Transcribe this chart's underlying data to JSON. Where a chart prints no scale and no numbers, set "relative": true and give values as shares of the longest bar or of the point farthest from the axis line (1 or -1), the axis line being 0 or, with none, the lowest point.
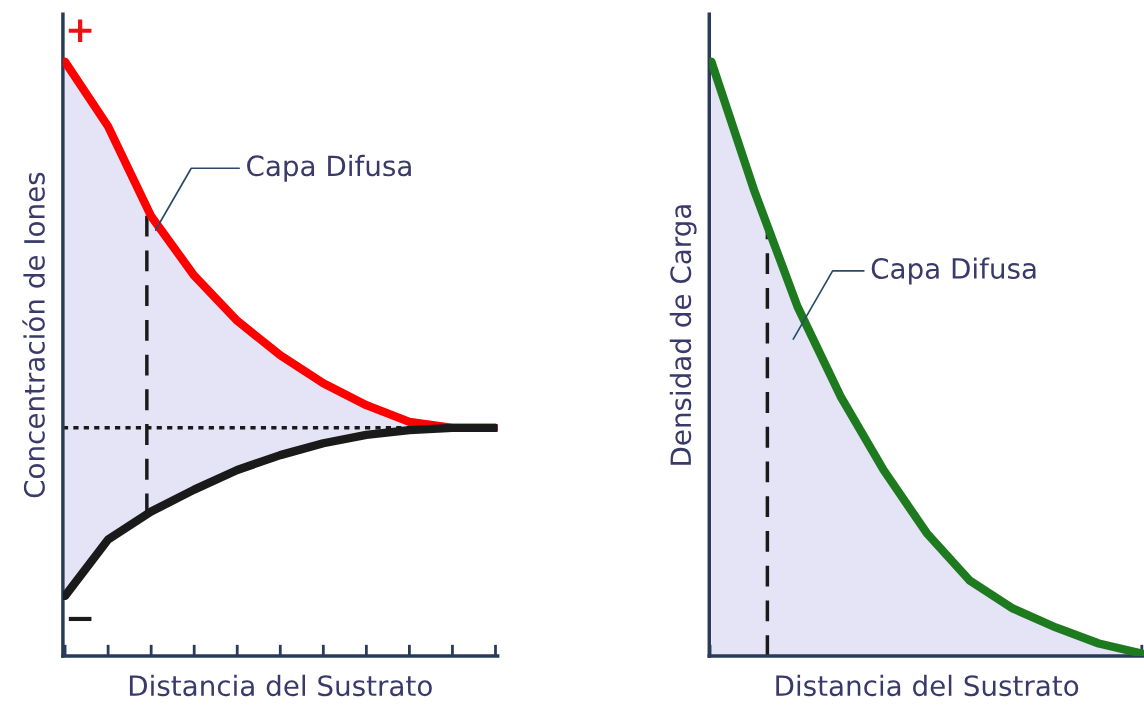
{
  "chart_data": [
    {
      "type": "line",
      "relative": true,
      "ylabel": "Concentración de Iones",
      "xlabel": "Distancia del Sustrato",
      "categories": [
        null,
        null,
        null,
        null,
        null,
        null,
        null,
        null,
        null,
        null,
        null
      ],
      "series": [
        {
          "color": "#ff0000",
          "values": [
            1.0,
            0.891,
            0.74,
            0.64,
            0.564,
            0.506,
            0.459,
            0.422,
            0.394,
            0.384,
            0.384
          ],
          "lower": [
            0.101,
            0.196,
            0.243,
            0.28,
            0.313,
            0.338,
            0.358,
            0.372,
            0.38,
            0.384,
            0.384
          ],
          "upper": [
            1.0,
            0.891,
            0.74,
            0.64,
            0.564,
            0.506,
            0.459,
            0.422,
            0.394,
            0.384,
            0.384
          ]
        },
        {
          "color": "#1a1a1a",
          "values": [
            0.101,
            0.196,
            0.243,
            0.28,
            0.313,
            0.338,
            0.358,
            0.372,
            0.38,
            0.384,
            0.384
          ]
        }
      ],
      "ref_lines": [
        {
          "axis": "y",
          "value": 0.384,
          "color": "#1a1a1a",
          "line_style": "dotted"
        }
      ],
      "annotations": [
        "Capa Difusa",
        "+",
        "−"
      ],
      "grid": false,
      "legend": false
    },
    {
      "type": "line",
      "relative": true,
      "ylabel": "Densidad de Carga",
      "xlabel": "Distancia del Sustrato",
      "categories": [
        null,
        null,
        null,
        null,
        null,
        null,
        null,
        null,
        null,
        null,
        null
      ],
      "series": [
        {
          "color": "#1e7a1e",
          "values": [
            1.0,
            0.782,
            0.588,
            0.437,
            0.313,
            0.207,
            0.127,
            0.08,
            0.048,
            0.021,
            0.004
          ],
          "lower": [
            0,
            0,
            0,
            0,
            0,
            0,
            0,
            0,
            0,
            0,
            0
          ],
          "upper": [
            1.0,
            0.782,
            0.588,
            0.437,
            0.313,
            0.207,
            0.127,
            0.08,
            0.048,
            0.021,
            0.004
          ]
        }
      ],
      "annotations": [
        "Capa Difusa"
      ],
      "grid": false,
      "legend": false
    }
  ]
}
